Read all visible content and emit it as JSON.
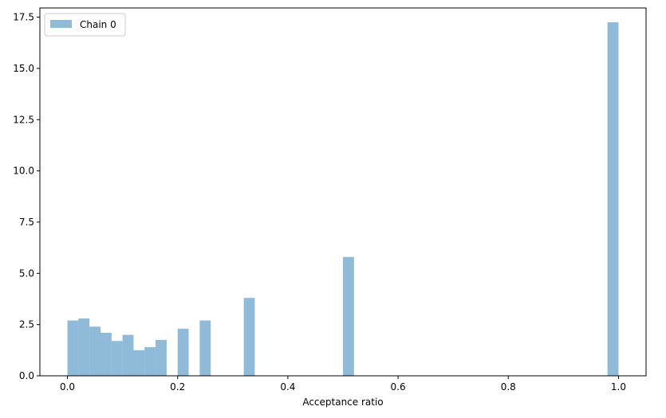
{
  "chart_data": {
    "type": "bar",
    "subtype": "histogram",
    "xlabel": "Acceptance ratio",
    "ylabel": "",
    "xlim": [
      -0.05,
      1.05
    ],
    "ylim": [
      0,
      17.95
    ],
    "xticks": [
      0.0,
      0.2,
      0.4,
      0.6,
      0.8,
      1.0
    ],
    "xtick_labels": [
      "0.0",
      "0.2",
      "0.4",
      "0.6",
      "0.8",
      "1.0"
    ],
    "yticks": [
      0.0,
      2.5,
      5.0,
      7.5,
      10.0,
      12.5,
      15.0,
      17.5
    ],
    "ytick_labels": [
      "0.0",
      "2.5",
      "5.0",
      "7.5",
      "10.0",
      "12.5",
      "15.0",
      "17.5"
    ],
    "bin_width": 0.02,
    "grid": false,
    "legend": {
      "position": "upper-left",
      "entries": [
        "Chain 0"
      ]
    },
    "series": [
      {
        "name": "Chain 0",
        "color": "#1f77b4",
        "alpha": 0.5,
        "bins": [
          {
            "x0": 0.0,
            "x1": 0.02,
            "value": 2.7
          },
          {
            "x0": 0.02,
            "x1": 0.04,
            "value": 2.8
          },
          {
            "x0": 0.04,
            "x1": 0.06,
            "value": 2.4
          },
          {
            "x0": 0.06,
            "x1": 0.08,
            "value": 2.1
          },
          {
            "x0": 0.08,
            "x1": 0.1,
            "value": 1.7
          },
          {
            "x0": 0.1,
            "x1": 0.12,
            "value": 2.0
          },
          {
            "x0": 0.12,
            "x1": 0.14,
            "value": 1.25
          },
          {
            "x0": 0.14,
            "x1": 0.16,
            "value": 1.4
          },
          {
            "x0": 0.16,
            "x1": 0.18,
            "value": 1.75
          },
          {
            "x0": 0.2,
            "x1": 0.22,
            "value": 2.3
          },
          {
            "x0": 0.24,
            "x1": 0.26,
            "value": 2.7
          },
          {
            "x0": 0.32,
            "x1": 0.34,
            "value": 3.8
          },
          {
            "x0": 0.5,
            "x1": 0.52,
            "value": 5.8
          },
          {
            "x0": 0.98,
            "x1": 1.0,
            "value": 17.25
          }
        ]
      }
    ]
  }
}
